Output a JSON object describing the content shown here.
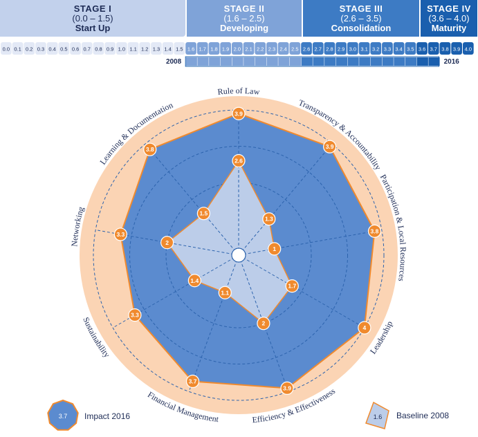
{
  "stages": [
    {
      "title": "STAGE I",
      "range": "(0.0 – 1.5)",
      "name": "Start Up"
    },
    {
      "title": "STAGE II",
      "range": "(1.6 – 2.5)",
      "name": "Developing"
    },
    {
      "title": "STAGE III",
      "range": "(2.6 – 3.5)",
      "name": "Consolidation"
    },
    {
      "title": "STAGE IV",
      "range": "(3.6 – 4.0)",
      "name": "Maturity"
    }
  ],
  "scale_ticks": [
    "0.0",
    "0.1",
    "0.2",
    "0.3",
    "0.4",
    "0.5",
    "0.6",
    "0.7",
    "0.8",
    "0.9",
    "1.0",
    "1.1",
    "1.2",
    "1.3",
    "1.4",
    "1.5",
    "1.6",
    "1.7",
    "1.8",
    "1.9",
    "2.0",
    "2.1",
    "2.2",
    "2.3",
    "2.4",
    "2.5",
    "2.6",
    "2.7",
    "2.8",
    "2.9",
    "3.0",
    "3.1",
    "3.2",
    "3.3",
    "3.4",
    "3.5",
    "3.6",
    "3.7",
    "3.8",
    "3.9",
    "4.0"
  ],
  "timeline": {
    "start_label": "2008",
    "end_label": "2016",
    "start_value": 1.6,
    "end_value": 3.7
  },
  "colors": {
    "stage1": "#c2d1ec",
    "stage2": "#7fa3d8",
    "stage3": "#3d7bc4",
    "stage4": "#1a5fae",
    "impact_fill": "#5b8bcf",
    "baseline_fill": "#bccde9",
    "marker": "#f08a2e",
    "outer_ring": "#fbd4b4"
  },
  "chart_data": {
    "type": "radar",
    "rmax": 4.0,
    "gridlines": [
      1,
      2,
      3,
      4
    ],
    "axes": [
      "Rule of Law",
      "Transparency & Accountability",
      "Participation & Local Resources",
      "Leadership",
      "Efficiency & Effectiveness",
      "Financial Management",
      "Sustainability",
      "Networking",
      "Learning & Documentation"
    ],
    "series": [
      {
        "name": "Impact 2016",
        "values": [
          3.9,
          3.9,
          3.8,
          4.0,
          3.9,
          3.7,
          3.3,
          3.3,
          3.8
        ]
      },
      {
        "name": "Baseline 2008",
        "values": [
          2.6,
          1.3,
          1.0,
          1.7,
          2.0,
          1.1,
          1.4,
          2.0,
          1.5
        ]
      }
    ],
    "legend": [
      {
        "label": "Impact 2016",
        "badge": "3.7"
      },
      {
        "label": "Baseline 2008",
        "badge": "1.6"
      }
    ]
  }
}
